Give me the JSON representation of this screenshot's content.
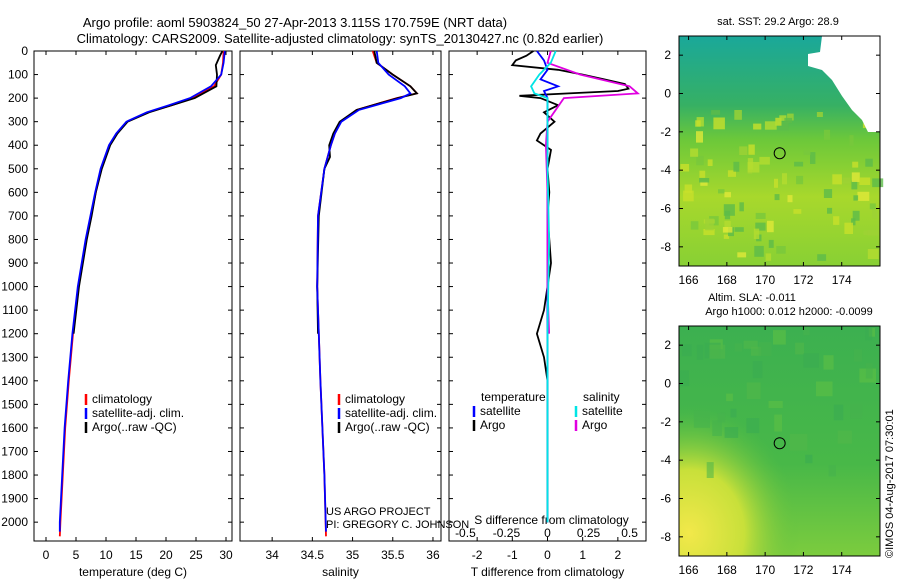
{
  "header": {
    "line1": "Argo profile: aoml 5903824_50 27-Apr-2013 3.115S 170.759E (NRT data)",
    "line2": "Climatology: CARS2009. Satellite-adjusted climatology: synTS_20130427.nc (0.82d earlier)"
  },
  "colors": {
    "climatology": "#ff0000",
    "satellite": "#0000ff",
    "argo": "#000000",
    "sal_satellite": "#00e5e5",
    "sal_argo": "#e000e0"
  },
  "depth_axis": {
    "ticks": [
      0,
      100,
      200,
      300,
      400,
      500,
      600,
      700,
      800,
      900,
      1000,
      1100,
      1200,
      1300,
      1400,
      1500,
      1600,
      1700,
      1800,
      1900,
      2000
    ],
    "range": [
      0,
      2080
    ]
  },
  "chart_data": [
    {
      "type": "line",
      "id": "temperature",
      "xlabel": "temperature (deg C)",
      "ylabel": "depth",
      "xlim": [
        -2,
        31
      ],
      "ylim": [
        0,
        2080
      ],
      "xticks": [
        0,
        5,
        10,
        15,
        20,
        25,
        30
      ],
      "legend": [
        "climatology",
        "satellite-adj. clim.",
        "Argo(..raw -QC)"
      ],
      "series": [
        {
          "name": "climatology",
          "depth": [
            0,
            50,
            100,
            150,
            200,
            230,
            260,
            300,
            350,
            400,
            500,
            600,
            700,
            800,
            1000,
            1200,
            1400,
            1600,
            1800,
            2000,
            2060
          ],
          "values": [
            29.6,
            29.5,
            29.2,
            28.0,
            24.5,
            21.0,
            17.0,
            13.5,
            11.8,
            10.6,
            9.2,
            8.3,
            7.5,
            6.7,
            5.4,
            4.5,
            3.8,
            3.2,
            2.8,
            2.4,
            2.3
          ]
        },
        {
          "name": "satellite-adj. clim.",
          "depth": [
            0,
            50,
            100,
            150,
            200,
            230,
            260,
            300,
            350,
            400,
            500,
            600,
            700,
            800,
            1000,
            1200,
            1400,
            1600,
            1800,
            2000,
            2040
          ],
          "values": [
            29.8,
            29.6,
            29.2,
            27.5,
            24.0,
            20.5,
            16.8,
            13.4,
            11.7,
            10.5,
            9.1,
            8.2,
            7.4,
            6.6,
            5.3,
            4.4,
            3.7,
            3.1,
            2.7,
            2.3,
            2.3
          ]
        },
        {
          "name": "Argo(..raw -QC)",
          "depth": [
            0,
            20,
            60,
            100,
            150,
            200,
            230,
            260,
            300,
            350,
            400,
            500,
            600,
            700,
            800,
            1000,
            1200
          ],
          "values": [
            29.4,
            29.0,
            28.3,
            28.5,
            28.4,
            24.8,
            21.0,
            17.2,
            13.6,
            11.9,
            10.7,
            9.3,
            8.3,
            7.6,
            6.8,
            5.5,
            4.6
          ]
        }
      ]
    },
    {
      "type": "line",
      "id": "salinity",
      "xlabel": "salinity",
      "ylabel": "depth",
      "xlim": [
        33.6,
        36.1
      ],
      "ylim": [
        0,
        2080
      ],
      "xticks": [
        34,
        34.5,
        35,
        35.5,
        36
      ],
      "xtick_labels": [
        "34",
        "34.5",
        "35",
        "35.5",
        "36"
      ],
      "legend": [
        "climatology",
        "satellite-adj. clim.",
        "Argo(..raw -QC)"
      ],
      "series": [
        {
          "name": "climatology",
          "depth": [
            0,
            50,
            100,
            150,
            180,
            200,
            250,
            300,
            350,
            400,
            500,
            700,
            1000,
            1400,
            1800,
            2060
          ],
          "values": [
            35.25,
            35.3,
            35.5,
            35.72,
            35.8,
            35.55,
            35.05,
            34.85,
            34.78,
            34.73,
            34.65,
            34.57,
            34.56,
            34.6,
            34.65,
            34.67
          ]
        },
        {
          "name": "satellite-adj. clim.",
          "depth": [
            0,
            50,
            100,
            150,
            180,
            200,
            250,
            300,
            350,
            400,
            500,
            700,
            1000,
            1400,
            1800,
            2040
          ],
          "values": [
            35.3,
            35.32,
            35.45,
            35.65,
            35.72,
            35.6,
            35.08,
            34.86,
            34.78,
            34.73,
            34.65,
            34.57,
            34.56,
            34.6,
            34.65,
            34.67
          ]
        },
        {
          "name": "Argo(..raw -QC)",
          "depth": [
            0,
            50,
            100,
            150,
            180,
            200,
            250,
            300,
            350,
            400,
            450,
            500,
            700,
            1000,
            1200
          ],
          "values": [
            35.27,
            35.3,
            35.5,
            35.72,
            35.8,
            35.56,
            35.05,
            34.84,
            34.76,
            34.71,
            34.72,
            34.65,
            34.58,
            34.56,
            34.57
          ]
        }
      ]
    },
    {
      "type": "line",
      "id": "difference",
      "xlabel": "T difference from climatology",
      "x2label": "S difference from climatology",
      "xlim": [
        -2.8,
        2.8
      ],
      "xticks": [
        -2,
        -1,
        0,
        1,
        2
      ],
      "x2ticks": [
        -0.5,
        -0.25,
        0,
        0.25,
        0.5
      ],
      "x2tick_labels": [
        "-0.5",
        "-0.25",
        "0",
        "0.25",
        "0.5"
      ],
      "legend_titles": [
        "temperature",
        "salinity"
      ],
      "legend": [
        "satellite",
        "Argo",
        "satellite",
        "Argo"
      ],
      "series": [
        {
          "name": "temperature satellite",
          "depth": [
            0,
            40,
            80,
            120,
            150,
            170,
            200,
            300,
            500,
            800,
            1200,
            1600,
            2000
          ],
          "values": [
            -0.3,
            -0.1,
            0.0,
            -0.2,
            0.3,
            -0.1,
            0.0,
            0.0,
            0.0,
            0.0,
            0.0,
            0.0,
            0.0
          ]
        },
        {
          "name": "temperature Argo",
          "depth": [
            0,
            20,
            40,
            60,
            80,
            100,
            120,
            140,
            160,
            170,
            180,
            190,
            200,
            230,
            260,
            300,
            350,
            380,
            420,
            500,
            600,
            700,
            800,
            900,
            1000,
            1100,
            1200,
            1300,
            1400,
            1600,
            2000
          ],
          "values": [
            -0.4,
            -0.6,
            -0.9,
            -1.0,
            0.3,
            1.0,
            1.6,
            2.2,
            2.3,
            2.0,
            0.6,
            -0.8,
            -0.2,
            0.3,
            -0.1,
            0.2,
            -0.2,
            -0.3,
            0.1,
            0.0,
            0.05,
            0.0,
            0.05,
            0.1,
            0.0,
            -0.1,
            -0.3,
            -0.1,
            0.0,
            0.0,
            0.0
          ]
        },
        {
          "name": "salinity satellite",
          "depth": [
            0,
            50,
            100,
            150,
            180,
            200,
            300,
            500,
            800,
            1200,
            1600,
            2000
          ],
          "values": [
            0.05,
            0.02,
            -0.05,
            -0.1,
            -0.08,
            0.0,
            0.0,
            0.0,
            0.01,
            0.0,
            0.0,
            0.0
          ]
        },
        {
          "name": "salinity Argo",
          "depth": [
            0,
            50,
            100,
            150,
            180,
            200,
            300,
            400,
            600,
            800,
            1000,
            1200
          ],
          "values": [
            0.02,
            0.0,
            0.2,
            0.5,
            0.55,
            0.1,
            0.0,
            -0.01,
            0.0,
            0.0,
            0.0,
            0.01
          ]
        }
      ]
    }
  ],
  "credits": {
    "line1": "US ARGO PROJECT",
    "line2": "PI: GREGORY C. JOHNSON"
  },
  "maps": {
    "sst": {
      "title": "sat. SST: 29.2 Argo: 28.9",
      "yticks": [
        2,
        0,
        -2,
        -4,
        -6,
        -8
      ],
      "xticks": [
        166,
        168,
        170,
        172,
        174
      ],
      "argo_lon": 170.759,
      "argo_lat": -3.115
    },
    "sla": {
      "title1": "Altim. SLA: -0.011",
      "title2": "Argo h1000: 0.012 h2000: -0.0099",
      "yticks": [
        2,
        0,
        -2,
        -4,
        -6,
        -8
      ],
      "xticks": [
        166,
        168,
        170,
        172,
        174
      ],
      "argo_lon": 170.759,
      "argo_lat": -3.115
    }
  },
  "watermark": "©IMOS 04-Aug-2017 07:30:01"
}
